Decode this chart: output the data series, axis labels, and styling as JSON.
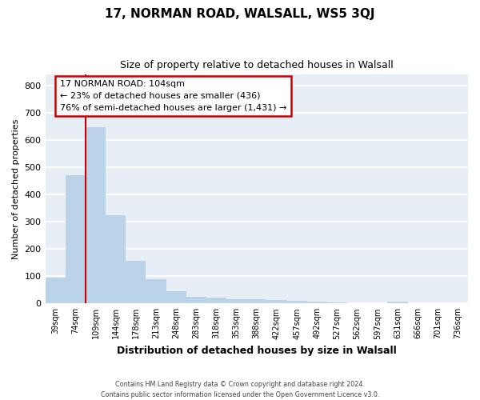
{
  "title": "17, NORMAN ROAD, WALSALL, WS5 3QJ",
  "subtitle": "Size of property relative to detached houses in Walsall",
  "xlabel": "Distribution of detached houses by size in Walsall",
  "ylabel": "Number of detached properties",
  "categories": [
    "39sqm",
    "74sqm",
    "109sqm",
    "144sqm",
    "178sqm",
    "213sqm",
    "248sqm",
    "283sqm",
    "318sqm",
    "353sqm",
    "388sqm",
    "422sqm",
    "457sqm",
    "492sqm",
    "527sqm",
    "562sqm",
    "597sqm",
    "631sqm",
    "666sqm",
    "701sqm",
    "736sqm"
  ],
  "values": [
    95,
    470,
    648,
    323,
    158,
    88,
    44,
    25,
    20,
    17,
    17,
    14,
    11,
    7,
    5,
    0,
    0,
    8,
    0,
    0,
    0
  ],
  "bar_color": "#bad3e8",
  "bar_edgecolor": "#bad3e8",
  "vline_color": "#cc0000",
  "vline_xindex": 2,
  "annotation_line1": "17 NORMAN ROAD: 104sqm",
  "annotation_line2": "← 23% of detached houses are smaller (436)",
  "annotation_line3": "76% of semi-detached houses are larger (1,431) →",
  "annotation_box_edgecolor": "#cc0000",
  "background_color": "#e8eef5",
  "grid_color": "#ffffff",
  "ylim": [
    0,
    840
  ],
  "yticks": [
    0,
    100,
    200,
    300,
    400,
    500,
    600,
    700,
    800
  ],
  "footer_line1": "Contains HM Land Registry data © Crown copyright and database right 2024.",
  "footer_line2": "Contains public sector information licensed under the Open Government Licence v3.0."
}
